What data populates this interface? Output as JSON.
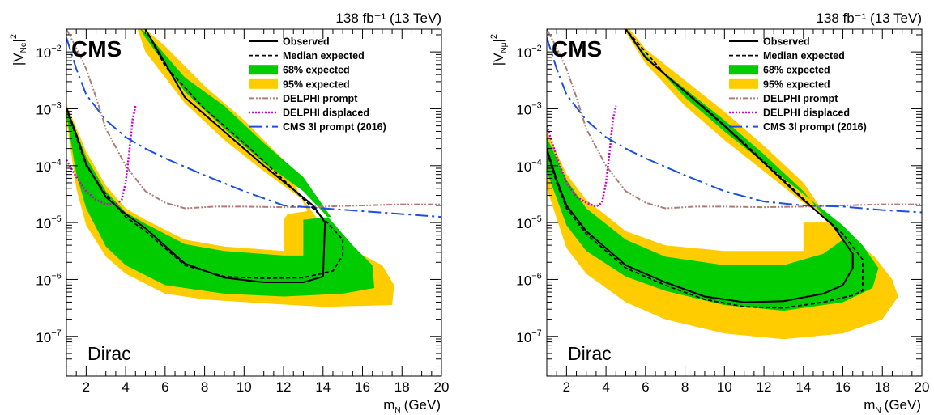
{
  "colors": {
    "band95": "#ffcc00",
    "band68": "#00cc00",
    "observed": "#000000",
    "expected": "#000000",
    "delphi_prompt": "#b07d74",
    "delphi_displaced": "#cc00cc",
    "cms3l": "#1a4fe0"
  },
  "legend": {
    "observed": "Observed",
    "median_expected": "Median expected",
    "band68": "68% expected",
    "band95": "95% expected",
    "delphi_prompt": "DELPHI prompt",
    "delphi_displaced": "DELPHI displaced",
    "cms3l": "CMS 3l prompt (2016)"
  },
  "chart_data": [
    {
      "type": "line",
      "id": "electron",
      "lumi_text": "138 fb⁻¹ (13 TeV)",
      "experiment": "CMS",
      "annotation": "Dirac",
      "xlabel_main": "m",
      "xlabel_sub": "N",
      "xlabel_unit": "(GeV)",
      "ylabel_main": "|V",
      "ylabel_sub": "Ne",
      "ylabel_sup": "2",
      "ylabel_close": "|",
      "xlim": [
        1,
        20
      ],
      "ylim_log10": [
        -7.7,
        -1.6
      ],
      "xticks": [
        2,
        4,
        6,
        8,
        10,
        12,
        14,
        16,
        18,
        20
      ],
      "xtick_labels": [
        "2",
        "4",
        "6",
        "8",
        "10",
        "12",
        "14",
        "16",
        "18",
        "20"
      ],
      "yticks_log10": [
        -7,
        -6,
        -5,
        -4,
        -3,
        -2
      ],
      "ytick_labels": [
        "10",
        "10",
        "10",
        "10",
        "10",
        "10"
      ],
      "ytick_exps": [
        "−7",
        "−6",
        "−5",
        "−4",
        "−3",
        "−2"
      ],
      "band95": [
        [
          1.0,
          -2.92
        ],
        [
          2.0,
          -3.75
        ],
        [
          3.0,
          -4.35
        ],
        [
          4.0,
          -4.75
        ],
        [
          5.0,
          -4.95
        ],
        [
          7.0,
          -5.3
        ],
        [
          9.0,
          -5.42
        ],
        [
          12.0,
          -5.5
        ],
        [
          12.0,
          -4.95
        ],
        [
          12.2,
          -4.85
        ],
        [
          13.2,
          -4.8
        ],
        [
          12.0,
          -3.9
        ],
        [
          10.0,
          -3.2
        ],
        [
          8.0,
          -2.6
        ],
        [
          6.0,
          -1.9
        ],
        [
          5.0,
          -1.6
        ],
        [
          4.6,
          -1.6
        ],
        [
          5.0,
          -2.0
        ],
        [
          7.0,
          -2.9
        ],
        [
          9.0,
          -3.55
        ],
        [
          11.0,
          -4.1
        ],
        [
          13.0,
          -4.6
        ],
        [
          14.5,
          -5.3
        ],
        [
          15.6,
          -5.5
        ],
        [
          17.0,
          -5.75
        ],
        [
          17.6,
          -6.1
        ],
        [
          17.5,
          -6.45
        ],
        [
          14.0,
          -6.48
        ],
        [
          11.0,
          -6.42
        ],
        [
          8.0,
          -6.35
        ],
        [
          6.0,
          -6.25
        ],
        [
          4.0,
          -5.9
        ],
        [
          3.0,
          -5.6
        ],
        [
          2.0,
          -5.05
        ],
        [
          1.5,
          -4.4
        ],
        [
          1.0,
          -3.2
        ]
      ],
      "band68": [
        [
          1.0,
          -2.97
        ],
        [
          2.0,
          -3.85
        ],
        [
          3.0,
          -4.45
        ],
        [
          4.0,
          -4.82
        ],
        [
          5.0,
          -5.02
        ],
        [
          7.0,
          -5.38
        ],
        [
          9.0,
          -5.5
        ],
        [
          12.0,
          -5.58
        ],
        [
          13.0,
          -5.58
        ],
        [
          13.0,
          -4.95
        ],
        [
          14.4,
          -4.9
        ],
        [
          13.0,
          -4.2
        ],
        [
          11.0,
          -3.6
        ],
        [
          9.0,
          -2.95
        ],
        [
          7.0,
          -2.45
        ],
        [
          5.0,
          -1.65
        ],
        [
          4.75,
          -1.6
        ],
        [
          5.0,
          -1.75
        ],
        [
          7.0,
          -2.7
        ],
        [
          9.0,
          -3.35
        ],
        [
          11.0,
          -3.95
        ],
        [
          13.0,
          -4.45
        ],
        [
          14.5,
          -5.0
        ],
        [
          15.5,
          -5.4
        ],
        [
          16.5,
          -5.75
        ],
        [
          16.6,
          -6.15
        ],
        [
          15.0,
          -6.25
        ],
        [
          12.0,
          -6.3
        ],
        [
          9.0,
          -6.25
        ],
        [
          6.0,
          -6.1
        ],
        [
          4.0,
          -5.75
        ],
        [
          3.0,
          -5.42
        ],
        [
          2.0,
          -4.75
        ],
        [
          1.5,
          -4.15
        ],
        [
          1.0,
          -3.1
        ]
      ],
      "observed": [
        [
          1.0,
          -2.98
        ],
        [
          1.5,
          -3.45
        ],
        [
          2.0,
          -3.97
        ],
        [
          3.0,
          -4.55
        ],
        [
          4.0,
          -4.85
        ],
        [
          5.0,
          -5.1
        ],
        [
          7.0,
          -5.72
        ],
        [
          9.0,
          -5.97
        ],
        [
          11.0,
          -6.05
        ],
        [
          13.0,
          -6.05
        ],
        [
          14.0,
          -5.95
        ],
        [
          14.1,
          -5.0
        ],
        [
          13.5,
          -4.7
        ],
        [
          11.0,
          -4.0
        ],
        [
          9.0,
          -3.4
        ],
        [
          7.0,
          -2.8
        ],
        [
          5.0,
          -1.6
        ]
      ],
      "expected": [
        [
          1.0,
          -3.0
        ],
        [
          1.5,
          -3.5
        ],
        [
          2.0,
          -4.0
        ],
        [
          3.0,
          -4.5
        ],
        [
          4.0,
          -4.9
        ],
        [
          5.0,
          -5.15
        ],
        [
          7.0,
          -5.75
        ],
        [
          9.0,
          -5.95
        ],
        [
          11.0,
          -5.98
        ],
        [
          13.0,
          -5.97
        ],
        [
          14.5,
          -5.85
        ],
        [
          15.0,
          -5.58
        ],
        [
          15.0,
          -5.3
        ],
        [
          14.0,
          -4.92
        ],
        [
          12.0,
          -4.25
        ],
        [
          10.0,
          -3.6
        ],
        [
          8.0,
          -3.0
        ],
        [
          6.0,
          -2.25
        ],
        [
          5.0,
          -1.6
        ]
      ],
      "delphi_prompt": [
        [
          1.0,
          -1.6
        ],
        [
          1.6,
          -2.0
        ],
        [
          2.0,
          -2.3
        ],
        [
          2.5,
          -2.8
        ],
        [
          3.0,
          -3.35
        ],
        [
          4.0,
          -4.0
        ],
        [
          5.0,
          -4.45
        ],
        [
          6.0,
          -4.65
        ],
        [
          7.0,
          -4.75
        ],
        [
          8.5,
          -4.72
        ],
        [
          10.0,
          -4.72
        ],
        [
          12.0,
          -4.73
        ],
        [
          14.0,
          -4.72
        ],
        [
          16.0,
          -4.7
        ],
        [
          18.0,
          -4.68
        ],
        [
          20.0,
          -4.68
        ]
      ],
      "delphi_displaced": [
        [
          1.0,
          -3.9
        ],
        [
          1.5,
          -4.2
        ],
        [
          2.0,
          -4.45
        ],
        [
          2.5,
          -4.6
        ],
        [
          3.0,
          -4.68
        ],
        [
          3.5,
          -4.68
        ],
        [
          3.8,
          -4.6
        ],
        [
          4.0,
          -4.3
        ],
        [
          4.2,
          -3.7
        ],
        [
          4.35,
          -3.2
        ],
        [
          4.5,
          -2.95
        ]
      ],
      "cms3l": [
        [
          1.0,
          -1.75
        ],
        [
          1.5,
          -2.3
        ],
        [
          2.0,
          -2.75
        ],
        [
          3.0,
          -3.2
        ],
        [
          4.0,
          -3.5
        ],
        [
          5.0,
          -3.7
        ],
        [
          6.0,
          -3.87
        ],
        [
          8.0,
          -4.17
        ],
        [
          10.0,
          -4.45
        ],
        [
          12.0,
          -4.7
        ],
        [
          14.0,
          -4.75
        ],
        [
          16.0,
          -4.8
        ],
        [
          18.0,
          -4.85
        ],
        [
          20.0,
          -4.9
        ]
      ]
    },
    {
      "type": "line",
      "id": "muon",
      "lumi_text": "138 fb⁻¹ (13 TeV)",
      "experiment": "CMS",
      "annotation": "Dirac",
      "xlabel_main": "m",
      "xlabel_sub": "N",
      "xlabel_unit": "(GeV)",
      "ylabel_main": "|V",
      "ylabel_sub": "Nμ",
      "ylabel_sup": "2",
      "ylabel_close": "|",
      "xlim": [
        1,
        20
      ],
      "ylim_log10": [
        -7.7,
        -1.6
      ],
      "xticks": [
        2,
        4,
        6,
        8,
        10,
        12,
        14,
        16,
        18,
        20
      ],
      "xtick_labels": [
        "2",
        "4",
        "6",
        "8",
        "10",
        "12",
        "14",
        "16",
        "18",
        "20"
      ],
      "yticks_log10": [
        -7,
        -6,
        -5,
        -4,
        -3,
        -2
      ],
      "ytick_labels": [
        "10",
        "10",
        "10",
        "10",
        "10",
        "10"
      ],
      "ytick_exps": [
        "−7",
        "−6",
        "−5",
        "−4",
        "−3",
        "−2"
      ],
      "band95": [
        [
          1.0,
          -3.4
        ],
        [
          2.0,
          -4.15
        ],
        [
          3.0,
          -4.6
        ],
        [
          5.0,
          -5.15
        ],
        [
          7.0,
          -5.4
        ],
        [
          10.0,
          -5.5
        ],
        [
          14.0,
          -5.5
        ],
        [
          14.0,
          -5.0
        ],
        [
          15.4,
          -5.0
        ],
        [
          14.0,
          -4.3
        ],
        [
          12.0,
          -3.65
        ],
        [
          10.0,
          -3.05
        ],
        [
          8.0,
          -2.5
        ],
        [
          6.0,
          -1.95
        ],
        [
          5.2,
          -1.6
        ],
        [
          4.9,
          -1.6
        ],
        [
          6.0,
          -2.2
        ],
        [
          8.0,
          -2.95
        ],
        [
          10.0,
          -3.55
        ],
        [
          12.0,
          -4.1
        ],
        [
          14.0,
          -4.65
        ],
        [
          15.5,
          -5.0
        ],
        [
          16.5,
          -5.3
        ],
        [
          17.6,
          -5.6
        ],
        [
          18.5,
          -6.0
        ],
        [
          18.8,
          -6.3
        ],
        [
          18.0,
          -6.7
        ],
        [
          16.0,
          -6.95
        ],
        [
          13.0,
          -7.05
        ],
        [
          10.0,
          -6.95
        ],
        [
          7.0,
          -6.7
        ],
        [
          5.0,
          -6.4
        ],
        [
          3.0,
          -5.9
        ],
        [
          2.0,
          -5.45
        ],
        [
          1.0,
          -4.4
        ]
      ],
      "band68": [
        [
          1.0,
          -3.5
        ],
        [
          2.0,
          -4.25
        ],
        [
          3.0,
          -4.75
        ],
        [
          5.0,
          -5.3
        ],
        [
          7.0,
          -5.6
        ],
        [
          10.0,
          -5.75
        ],
        [
          13.0,
          -5.75
        ],
        [
          15.0,
          -5.55
        ],
        [
          16.0,
          -5.3
        ],
        [
          14.0,
          -4.45
        ],
        [
          12.0,
          -3.8
        ],
        [
          10.0,
          -3.2
        ],
        [
          8.0,
          -2.65
        ],
        [
          6.0,
          -2.1
        ],
        [
          5.05,
          -1.6
        ],
        [
          5.0,
          -1.6
        ],
        [
          6.0,
          -2.05
        ],
        [
          8.0,
          -2.8
        ],
        [
          10.0,
          -3.4
        ],
        [
          12.0,
          -3.95
        ],
        [
          14.0,
          -4.5
        ],
        [
          16.0,
          -5.05
        ],
        [
          17.0,
          -5.4
        ],
        [
          17.8,
          -5.8
        ],
        [
          17.5,
          -6.15
        ],
        [
          16.0,
          -6.4
        ],
        [
          13.0,
          -6.55
        ],
        [
          10.0,
          -6.45
        ],
        [
          7.0,
          -6.2
        ],
        [
          5.0,
          -5.95
        ],
        [
          3.0,
          -5.5
        ],
        [
          2.0,
          -5.05
        ],
        [
          1.0,
          -4.1
        ]
      ],
      "observed": [
        [
          1.0,
          -3.7
        ],
        [
          1.5,
          -4.25
        ],
        [
          2.0,
          -4.7
        ],
        [
          3.0,
          -5.15
        ],
        [
          5.0,
          -5.75
        ],
        [
          7.0,
          -6.05
        ],
        [
          9.0,
          -6.3
        ],
        [
          11.0,
          -6.4
        ],
        [
          13.0,
          -6.38
        ],
        [
          15.0,
          -6.25
        ],
        [
          16.0,
          -6.1
        ],
        [
          16.5,
          -5.8
        ],
        [
          16.5,
          -5.55
        ],
        [
          15.5,
          -5.05
        ],
        [
          14.0,
          -4.6
        ],
        [
          12.0,
          -3.95
        ],
        [
          10.0,
          -3.3
        ],
        [
          8.0,
          -2.7
        ],
        [
          6.0,
          -2.1
        ],
        [
          5.0,
          -1.6
        ]
      ],
      "expected": [
        [
          1.0,
          -3.75
        ],
        [
          1.5,
          -4.3
        ],
        [
          2.0,
          -4.75
        ],
        [
          3.0,
          -5.2
        ],
        [
          5.0,
          -5.8
        ],
        [
          7.0,
          -6.1
        ],
        [
          9.0,
          -6.35
        ],
        [
          11.0,
          -6.48
        ],
        [
          13.0,
          -6.5
        ],
        [
          15.0,
          -6.4
        ],
        [
          16.5,
          -6.28
        ],
        [
          17.0,
          -6.2
        ],
        [
          17.0,
          -5.65
        ],
        [
          16.0,
          -5.2
        ],
        [
          14.5,
          -4.75
        ],
        [
          13.0,
          -4.25
        ],
        [
          11.0,
          -3.6
        ],
        [
          9.0,
          -2.98
        ],
        [
          7.0,
          -2.4
        ],
        [
          5.0,
          -1.6
        ]
      ],
      "delphi_prompt": [
        [
          1.0,
          -1.6
        ],
        [
          1.6,
          -2.0
        ],
        [
          2.0,
          -2.3
        ],
        [
          2.5,
          -2.8
        ],
        [
          3.0,
          -3.35
        ],
        [
          4.0,
          -4.0
        ],
        [
          5.0,
          -4.45
        ],
        [
          6.0,
          -4.65
        ],
        [
          7.0,
          -4.75
        ],
        [
          8.5,
          -4.72
        ],
        [
          10.0,
          -4.72
        ],
        [
          12.0,
          -4.73
        ],
        [
          14.0,
          -4.72
        ],
        [
          16.0,
          -4.7
        ],
        [
          18.0,
          -4.68
        ],
        [
          20.0,
          -4.68
        ]
      ],
      "delphi_displaced": [
        [
          1.0,
          -3.3
        ],
        [
          1.5,
          -3.85
        ],
        [
          2.0,
          -4.3
        ],
        [
          2.5,
          -4.55
        ],
        [
          3.0,
          -4.65
        ],
        [
          3.5,
          -4.72
        ],
        [
          3.8,
          -4.65
        ],
        [
          4.0,
          -4.3
        ],
        [
          4.2,
          -3.7
        ],
        [
          4.35,
          -3.2
        ],
        [
          4.5,
          -2.95
        ]
      ],
      "cms3l": [
        [
          1.0,
          -1.75
        ],
        [
          1.5,
          -2.3
        ],
        [
          2.0,
          -2.75
        ],
        [
          3.0,
          -3.2
        ],
        [
          4.0,
          -3.5
        ],
        [
          5.0,
          -3.7
        ],
        [
          6.0,
          -3.87
        ],
        [
          8.0,
          -4.17
        ],
        [
          10.0,
          -4.45
        ],
        [
          12.0,
          -4.63
        ],
        [
          14.0,
          -4.7
        ],
        [
          16.0,
          -4.72
        ],
        [
          18.0,
          -4.78
        ],
        [
          20.0,
          -4.82
        ]
      ]
    }
  ]
}
